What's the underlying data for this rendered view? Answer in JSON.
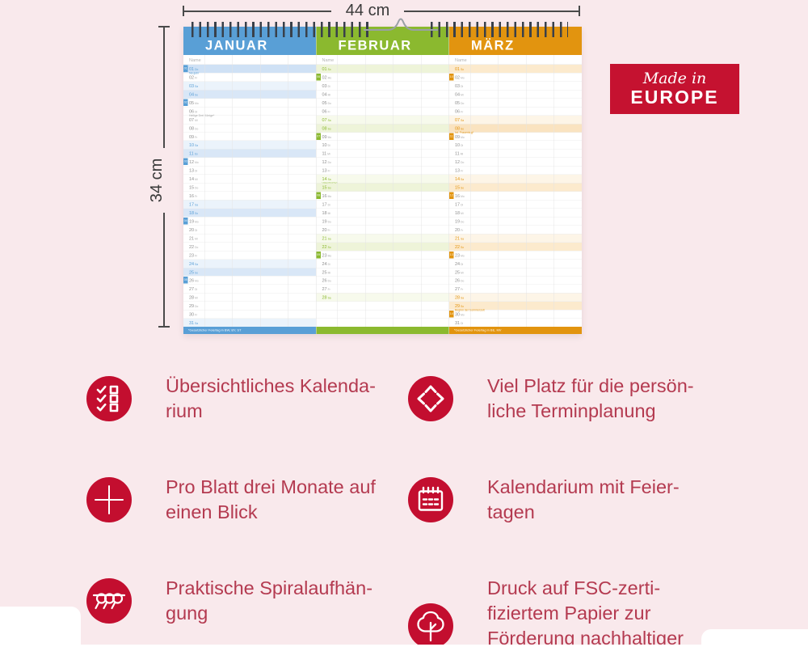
{
  "dimensions": {
    "width_label": "44 cm",
    "height_label": "34 cm"
  },
  "badge": {
    "line1": "Made in",
    "line2": "EUROPE",
    "bg": "#c51230"
  },
  "calendar": {
    "months": [
      {
        "name": "JANUAR",
        "name_label": "Name",
        "color": "#599fd6",
        "tint_sun": "#d9e7f7",
        "tint_sat": "#ebf3fb",
        "tint_holiday": "#cfe1f5",
        "footnote": "*Gesetzlicher Feiertag in BW, BY, ST",
        "days": [
          {
            "d": "01",
            "w": "Do",
            "t": "holiday",
            "kw": "01",
            "note": "Neujahr"
          },
          {
            "d": "02",
            "w": "Fr"
          },
          {
            "d": "03",
            "w": "Sa",
            "t": "sat"
          },
          {
            "d": "04",
            "w": "So",
            "t": "sun"
          },
          {
            "d": "05",
            "w": "Mo",
            "kw": "02"
          },
          {
            "d": "06",
            "w": "Di",
            "note": "Heilige Drei Könige*"
          },
          {
            "d": "07",
            "w": "Mi"
          },
          {
            "d": "08",
            "w": "Do"
          },
          {
            "d": "09",
            "w": "Fr"
          },
          {
            "d": "10",
            "w": "Sa",
            "t": "sat"
          },
          {
            "d": "11",
            "w": "So",
            "t": "sun"
          },
          {
            "d": "12",
            "w": "Mo",
            "kw": "03"
          },
          {
            "d": "13",
            "w": "Di"
          },
          {
            "d": "14",
            "w": "Mi"
          },
          {
            "d": "15",
            "w": "Do"
          },
          {
            "d": "16",
            "w": "Fr"
          },
          {
            "d": "17",
            "w": "Sa",
            "t": "sat"
          },
          {
            "d": "18",
            "w": "So",
            "t": "sun"
          },
          {
            "d": "19",
            "w": "Mo",
            "kw": "04"
          },
          {
            "d": "20",
            "w": "Di"
          },
          {
            "d": "21",
            "w": "Mi"
          },
          {
            "d": "22",
            "w": "Do"
          },
          {
            "d": "23",
            "w": "Fr"
          },
          {
            "d": "24",
            "w": "Sa",
            "t": "sat"
          },
          {
            "d": "25",
            "w": "So",
            "t": "sun"
          },
          {
            "d": "26",
            "w": "Mo",
            "kw": "05"
          },
          {
            "d": "27",
            "w": "Di"
          },
          {
            "d": "28",
            "w": "Mi"
          },
          {
            "d": "29",
            "w": "Do"
          },
          {
            "d": "30",
            "w": "Fr"
          },
          {
            "d": "31",
            "w": "Sa",
            "t": "sat"
          }
        ]
      },
      {
        "name": "FEBRUAR",
        "name_label": "Name",
        "color": "#8bb92f",
        "tint_sun": "#eef4d9",
        "tint_sat": "#f7faec",
        "tint_holiday": "#e7f0cc",
        "footnote": "",
        "days": [
          {
            "d": "01",
            "w": "So",
            "t": "sun"
          },
          {
            "d": "02",
            "w": "Mo",
            "kw": "06"
          },
          {
            "d": "03",
            "w": "Di"
          },
          {
            "d": "04",
            "w": "Mi"
          },
          {
            "d": "05",
            "w": "Do"
          },
          {
            "d": "06",
            "w": "Fr"
          },
          {
            "d": "07",
            "w": "Sa",
            "t": "sat"
          },
          {
            "d": "08",
            "w": "So",
            "t": "sun"
          },
          {
            "d": "09",
            "w": "Mo",
            "kw": "07"
          },
          {
            "d": "10",
            "w": "Di"
          },
          {
            "d": "11",
            "w": "Mi"
          },
          {
            "d": "12",
            "w": "Do"
          },
          {
            "d": "13",
            "w": "Fr"
          },
          {
            "d": "14",
            "w": "Sa",
            "t": "sat",
            "note": "Valentinstag"
          },
          {
            "d": "15",
            "w": "So",
            "t": "sun"
          },
          {
            "d": "16",
            "w": "Mo",
            "kw": "08"
          },
          {
            "d": "17",
            "w": "Di"
          },
          {
            "d": "18",
            "w": "Mi"
          },
          {
            "d": "19",
            "w": "Do"
          },
          {
            "d": "20",
            "w": "Fr"
          },
          {
            "d": "21",
            "w": "Sa",
            "t": "sat"
          },
          {
            "d": "22",
            "w": "So",
            "t": "sun"
          },
          {
            "d": "23",
            "w": "Mo",
            "kw": "09"
          },
          {
            "d": "24",
            "w": "Di"
          },
          {
            "d": "25",
            "w": "Mi"
          },
          {
            "d": "26",
            "w": "Do"
          },
          {
            "d": "27",
            "w": "Fr"
          },
          {
            "d": "28",
            "w": "Sa",
            "t": "sat"
          },
          {},
          {},
          {}
        ]
      },
      {
        "name": "MÄRZ",
        "name_label": "Name",
        "color": "#e2940f",
        "tint_sun": "#fceacd",
        "tint_sat": "#fdf5e7",
        "tint_holiday": "#fae3c0",
        "footnote": "*Gesetzlicher Feiertag in BE, MV",
        "days": [
          {
            "d": "01",
            "w": "So",
            "t": "sun"
          },
          {
            "d": "02",
            "w": "Mo",
            "kw": "10"
          },
          {
            "d": "03",
            "w": "Di"
          },
          {
            "d": "04",
            "w": "Mi"
          },
          {
            "d": "05",
            "w": "Do"
          },
          {
            "d": "06",
            "w": "Fr"
          },
          {
            "d": "07",
            "w": "Sa",
            "t": "sat"
          },
          {
            "d": "08",
            "w": "So",
            "t": "holiday",
            "note": "Int. Frauentag*"
          },
          {
            "d": "09",
            "w": "Mo",
            "kw": "11"
          },
          {
            "d": "10",
            "w": "Di"
          },
          {
            "d": "11",
            "w": "Mi"
          },
          {
            "d": "12",
            "w": "Do"
          },
          {
            "d": "13",
            "w": "Fr"
          },
          {
            "d": "14",
            "w": "Sa",
            "t": "sat"
          },
          {
            "d": "15",
            "w": "So",
            "t": "sun"
          },
          {
            "d": "16",
            "w": "Mo",
            "kw": "12"
          },
          {
            "d": "17",
            "w": "Di"
          },
          {
            "d": "18",
            "w": "Mi"
          },
          {
            "d": "19",
            "w": "Do"
          },
          {
            "d": "20",
            "w": "Fr"
          },
          {
            "d": "21",
            "w": "Sa",
            "t": "sat"
          },
          {
            "d": "22",
            "w": "So",
            "t": "sun"
          },
          {
            "d": "23",
            "w": "Mo",
            "kw": "13"
          },
          {
            "d": "24",
            "w": "Di"
          },
          {
            "d": "25",
            "w": "Mi"
          },
          {
            "d": "26",
            "w": "Do"
          },
          {
            "d": "27",
            "w": "Fr"
          },
          {
            "d": "28",
            "w": "Sa",
            "t": "sat"
          },
          {
            "d": "29",
            "w": "So",
            "t": "sun",
            "note": "Beginn der Sommerzeit"
          },
          {
            "d": "30",
            "w": "Mo",
            "kw": "14"
          },
          {
            "d": "31",
            "w": "Di"
          }
        ]
      }
    ]
  },
  "features": [
    {
      "icon": "checklist-icon",
      "text": "Übersichtliches Kalenda-\nrium"
    },
    {
      "icon": "expand-arrows-icon",
      "text": "Viel Platz für die persön-\nliche Terminplanung"
    },
    {
      "icon": "plus-icon",
      "text": "Pro Blatt drei Monate auf\neinen Blick"
    },
    {
      "icon": "calendar-icon",
      "text": "Kalendarium mit Feier-\ntagen"
    },
    {
      "icon": "spiral-binding-icon",
      "text": "Praktische Spiralaufhän-\ngung"
    },
    {
      "icon": "tree-icon",
      "text": "Druck auf FSC-zerti-\nfiziertem Papier zur\nFörderung nachhaltiger\nForstwirtschaft"
    }
  ]
}
